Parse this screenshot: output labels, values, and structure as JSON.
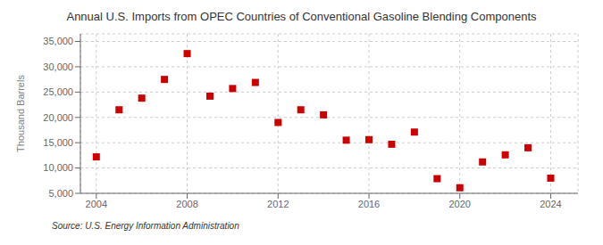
{
  "chart_data": {
    "type": "scatter",
    "title": "Annual U.S. Imports from OPEC Countries of Conventional Gasoline Blending Components",
    "ylabel": "Thousand Barrels",
    "annotation": "Source: U.S. Energy Information Administration",
    "x": [
      2004,
      2005,
      2006,
      2007,
      2008,
      2009,
      2010,
      2011,
      2012,
      2013,
      2014,
      2015,
      2016,
      2017,
      2018,
      2019,
      2020,
      2021,
      2022,
      2023,
      2024
    ],
    "values": [
      12200,
      21500,
      23800,
      27500,
      32600,
      24200,
      25700,
      26900,
      19000,
      21500,
      20500,
      15500,
      15600,
      14700,
      17100,
      7900,
      6100,
      11200,
      12600,
      14000,
      8000
    ],
    "color": "#cc0000",
    "marker": "square",
    "xlim": [
      2003.3,
      2025.2
    ],
    "xticks": [
      2004,
      2008,
      2012,
      2016,
      2020,
      2024
    ],
    "ylim": [
      5000,
      36500
    ],
    "yticks": [
      {
        "value": 5000,
        "label": "5,000"
      },
      {
        "value": 10000,
        "label": "10,000"
      },
      {
        "value": 15000,
        "label": "15,000"
      },
      {
        "value": 20000,
        "label": "20,000"
      },
      {
        "value": 25000,
        "label": "25,000"
      },
      {
        "value": 30000,
        "label": "30,000"
      },
      {
        "value": 35000,
        "label": "35,000"
      }
    ],
    "grid": true
  }
}
